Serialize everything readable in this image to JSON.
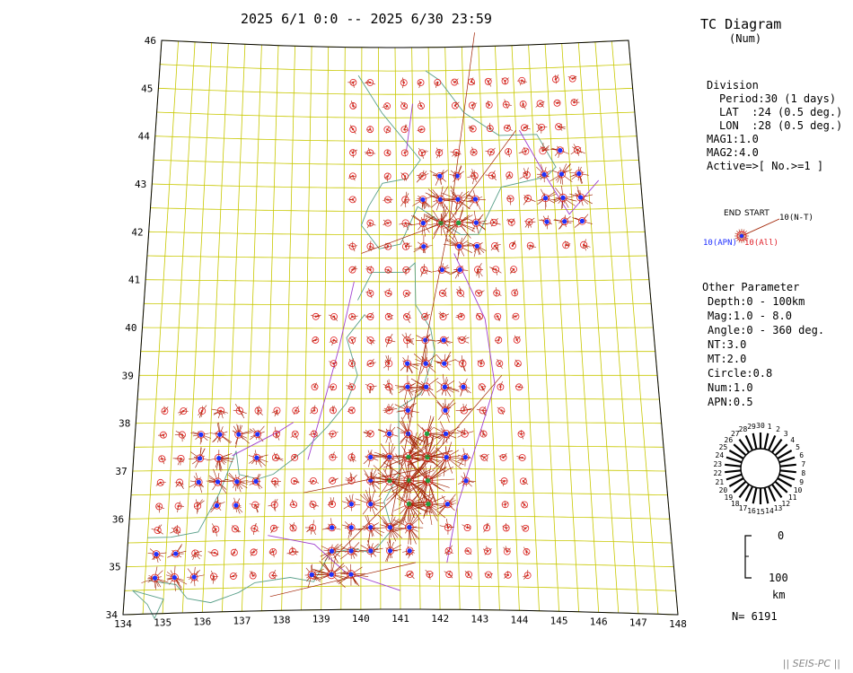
{
  "header": {
    "period_label": "2025 6/1 0:0 -- 2025 6/30 23:59"
  },
  "side_panel": {
    "title": "TC Diagram",
    "subtitle": "(Num)",
    "division": {
      "heading": "Division",
      "period": "Period:30 (1 days)",
      "lat": "LAT  :24 (0.5 deg.)",
      "lon": "LON  :28 (0.5 deg.)",
      "mag1": "MAG1:1.0",
      "mag2": "MAG2:4.0",
      "active": "Active=>[ No.>=1 ]"
    },
    "legend": {
      "end_label": "END",
      "start_label": "START",
      "nt_label": "10(N-T)",
      "apn_label": "10(APN)",
      "all_label": "10(All)"
    },
    "other": {
      "heading": "Other Parameter",
      "depth": "Depth:0 - 100km",
      "mag": "Mag:1.0 - 8.0",
      "angle": "Angle:0 - 360 deg.",
      "nt": "NT:3.0",
      "mt": "MT:2.0",
      "circle": "Circle:0.8",
      "num": "Num:1.0",
      "apn": "APN:0.5"
    },
    "clock_days": [
      "30",
      "1",
      "2",
      "3",
      "4",
      "5",
      "6",
      "7",
      "8",
      "9",
      "10",
      "11",
      "12",
      "13",
      "14",
      "15",
      "16",
      "17",
      "18",
      "19",
      "20",
      "21",
      "22",
      "23",
      "24",
      "25",
      "26",
      "27",
      "28",
      "29"
    ],
    "depth_scale": {
      "top": "0",
      "bottom": "100",
      "unit": "km"
    },
    "count": "N= 6191"
  },
  "footer": {
    "credit": "|| SEIS-PC ||"
  },
  "map": {
    "lat_labels": [
      "34",
      "35",
      "36",
      "37",
      "38",
      "39",
      "40",
      "41",
      "42",
      "43",
      "44",
      "45",
      "46"
    ],
    "lon_labels": [
      "134",
      "135",
      "136",
      "137",
      "138",
      "139",
      "140",
      "141",
      "142",
      "143",
      "144",
      "145",
      "146",
      "147",
      "148"
    ],
    "colors": {
      "grid": "#c8c800",
      "coast": "#5aa08a",
      "line": "#a02000",
      "tectonic": "#a040d0",
      "marker_red": "#e02020",
      "marker_blue": "#2030ff",
      "marker_green": "#20a040"
    }
  }
}
